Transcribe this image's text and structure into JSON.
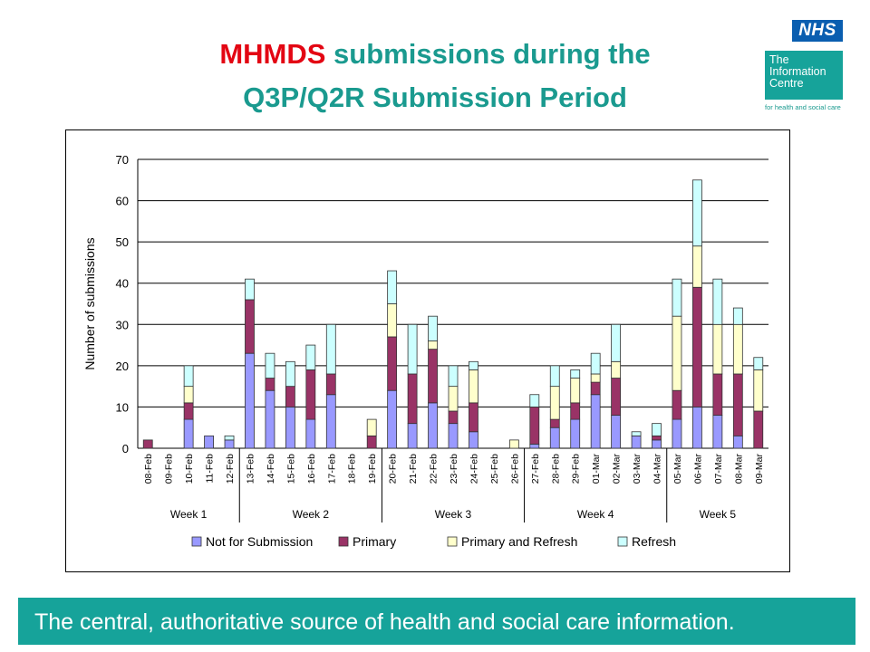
{
  "slide": {
    "title_red": "MHMDS",
    "title_line1_rest": " submissions during the",
    "title_line2": "Q3P/Q2R Submission Period",
    "footer": "The central, authoritative source of health and social care information."
  },
  "logo": {
    "nhs": "NHS",
    "name_line1": "The",
    "name_line2": "Information",
    "name_line3": "Centre",
    "tagline": "for health and social care"
  },
  "colors": {
    "title": "#1a9a8f",
    "title_accent": "#e30613",
    "footer": "#16a39a",
    "not_for_submission": "#9999ff",
    "primary": "#993366",
    "primary_and_refresh": "#ffffcc",
    "refresh": "#ccffff"
  },
  "chart_data": {
    "type": "bar",
    "stacked": true,
    "ylabel": "Number of submissions",
    "ylim": [
      0,
      70
    ],
    "yticks": [
      0,
      10,
      20,
      30,
      40,
      50,
      60,
      70
    ],
    "grid": true,
    "legend_position": "bottom",
    "categories": [
      "08-Feb",
      "09-Feb",
      "10-Feb",
      "11-Feb",
      "12-Feb",
      "13-Feb",
      "14-Feb",
      "15-Feb",
      "16-Feb",
      "17-Feb",
      "18-Feb",
      "19-Feb",
      "20-Feb",
      "21-Feb",
      "22-Feb",
      "23-Feb",
      "24-Feb",
      "25-Feb",
      "26-Feb",
      "27-Feb",
      "28-Feb",
      "29-Feb",
      "01-Mar",
      "02-Mar",
      "03-Mar",
      "04-Mar",
      "05-Mar",
      "06-Mar",
      "07-Mar",
      "08-Mar",
      "09-Mar"
    ],
    "weeks": [
      {
        "label": "Week 1",
        "start": 0,
        "end": 4
      },
      {
        "label": "Week 2",
        "start": 5,
        "end": 11
      },
      {
        "label": "Week 3",
        "start": 12,
        "end": 18
      },
      {
        "label": "Week 4",
        "start": 19,
        "end": 25
      },
      {
        "label": "Week 5",
        "start": 26,
        "end": 30
      }
    ],
    "series": [
      {
        "name": "Not for Submission",
        "color": "#9999ff",
        "values": [
          0,
          0,
          7,
          3,
          2,
          23,
          14,
          10,
          7,
          13,
          0,
          0,
          14,
          6,
          11,
          6,
          4,
          0,
          0,
          1,
          5,
          7,
          13,
          8,
          3,
          2,
          7,
          10,
          8,
          3,
          0
        ]
      },
      {
        "name": "Primary",
        "color": "#993366",
        "values": [
          2,
          0,
          4,
          0,
          0,
          13,
          3,
          5,
          12,
          5,
          0,
          3,
          13,
          12,
          13,
          3,
          7,
          0,
          0,
          9,
          2,
          4,
          3,
          9,
          0,
          1,
          7,
          29,
          10,
          15,
          9
        ]
      },
      {
        "name": "Primary and Refresh",
        "color": "#ffffcc",
        "values": [
          0,
          0,
          4,
          0,
          0,
          0,
          0,
          0,
          0,
          0,
          0,
          4,
          8,
          0,
          2,
          6,
          8,
          0,
          2,
          0,
          8,
          6,
          2,
          4,
          0,
          0,
          18,
          10,
          12,
          12,
          10
        ]
      },
      {
        "name": "Refresh",
        "color": "#ccffff",
        "values": [
          0,
          0,
          5,
          0,
          1,
          5,
          6,
          6,
          6,
          12,
          0,
          0,
          8,
          12,
          6,
          5,
          2,
          0,
          0,
          3,
          5,
          2,
          5,
          9,
          1,
          3,
          9,
          16,
          11,
          4,
          3
        ]
      }
    ]
  }
}
